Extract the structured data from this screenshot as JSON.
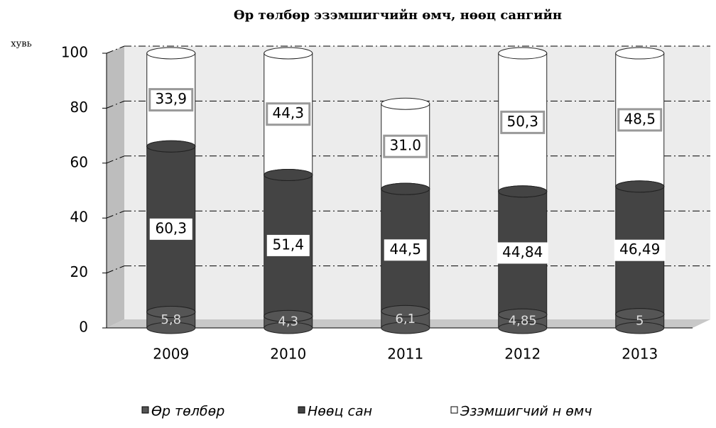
{
  "chart_data": {
    "type": "stacked_cylinder",
    "title": "Өр төлбөр эзэмшигчийн өмч, нөөц сангийн",
    "y_label": "хувь",
    "categories": [
      "2009",
      "2010",
      "2011",
      "2012",
      "2013"
    ],
    "series": [
      {
        "name": "Өр төлбөр",
        "color": "#555555",
        "values": [
          5.8,
          4.3,
          6.1,
          4.85,
          5
        ],
        "value_labels": [
          "5,8",
          "4,3",
          "6,1",
          "4,85",
          "5"
        ]
      },
      {
        "name": "Нөөц сан",
        "color": "#444444",
        "values": [
          60.3,
          51.4,
          44.5,
          44.84,
          46.49
        ],
        "value_labels": [
          "60,3",
          "51,4",
          "44,5",
          "44,84",
          "46,49"
        ]
      },
      {
        "name": "Эзэмшигчий н өмч",
        "color": "#ffffff",
        "values": [
          33.9,
          44.3,
          31.0,
          50.3,
          48.5
        ],
        "value_labels": [
          "33,9",
          "44,3",
          "31.0",
          "50,3",
          "48,5"
        ]
      }
    ],
    "ylim": [
      0,
      100
    ],
    "yticks": [
      0,
      20,
      40,
      60,
      80,
      100
    ],
    "grid": true
  }
}
